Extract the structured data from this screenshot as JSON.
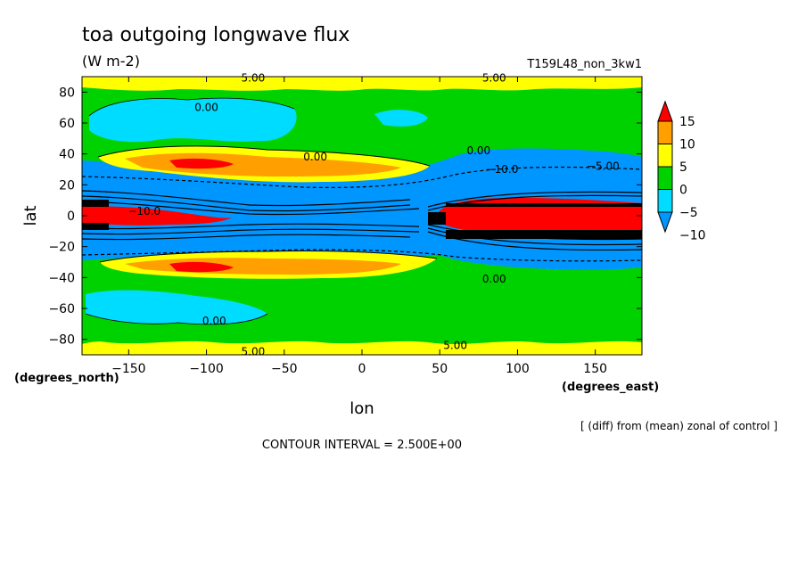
{
  "chart_data": {
    "type": "heatmap",
    "title": "toa outgoing longwave flux",
    "units": "(W m-2)",
    "run_label": "T159L48_non_3kw1",
    "xlabel": "lon",
    "ylabel": "lat",
    "xunits": "(degrees_east)",
    "yunits": "(degrees_north)",
    "xlim": [
      -180,
      180
    ],
    "ylim": [
      -90,
      90
    ],
    "xticks": [
      {
        "value": -150,
        "label": "−150"
      },
      {
        "value": -100,
        "label": "−100"
      },
      {
        "value": -50,
        "label": "−50"
      },
      {
        "value": 0,
        "label": "0"
      },
      {
        "value": 50,
        "label": "50"
      },
      {
        "value": 100,
        "label": "100"
      },
      {
        "value": 150,
        "label": "150"
      }
    ],
    "yticks": [
      {
        "value": 80,
        "label": "80"
      },
      {
        "value": 60,
        "label": "60"
      },
      {
        "value": 40,
        "label": "40"
      },
      {
        "value": 20,
        "label": "20"
      },
      {
        "value": 0,
        "label": "0"
      },
      {
        "value": -20,
        "label": "−20"
      },
      {
        "value": -40,
        "label": "−40"
      },
      {
        "value": -60,
        "label": "−60"
      },
      {
        "value": -80,
        "label": "−80"
      }
    ],
    "colorbar": {
      "levels": [
        -10,
        -5,
        0,
        5,
        10,
        15
      ],
      "labels": [
        "−10",
        "−5",
        "0",
        "5",
        "10",
        "15"
      ],
      "colors": [
        "#0096ff",
        "#00dcff",
        "#00d200",
        "#ffff00",
        "#ffa000",
        "#ff0000"
      ]
    },
    "contour_labels": [
      {
        "text": "5.00",
        "lon": -70,
        "lat": 89
      },
      {
        "text": "5.00",
        "lon": 85,
        "lat": 89
      },
      {
        "text": "0.00",
        "lon": -100,
        "lat": 70
      },
      {
        "text": "0.00",
        "lon": -30,
        "lat": 38
      },
      {
        "text": "0.00",
        "lon": 75,
        "lat": 42
      },
      {
        "text": "−10.0",
        "lon": 90,
        "lat": 30
      },
      {
        "text": "−5.00",
        "lon": 155,
        "lat": 32
      },
      {
        "text": "−10.0",
        "lon": -140,
        "lat": 3
      },
      {
        "text": "0.00",
        "lon": 85,
        "lat": -41
      },
      {
        "text": "0.00",
        "lon": -95,
        "lat": -68
      },
      {
        "text": "5.00",
        "lon": -70,
        "lat": -88
      },
      {
        "text": "5.00",
        "lon": 60,
        "lat": -84
      }
    ],
    "fields": [
      {
        "description": "equatorial positive anomaly band",
        "value_range": [
          10,
          20
        ]
      },
      {
        "description": "subtropical positive bands near 30N and 30S",
        "value_range": [
          5,
          15
        ]
      },
      {
        "description": "tropical negative bands near 15N and 15S",
        "value_range": [
          -20,
          -5
        ]
      },
      {
        "description": "mid-latitude negative patches near 60N and 60S",
        "value_range": [
          -5,
          0
        ]
      },
      {
        "description": "polar positive caps",
        "value_range": [
          5,
          10
        ]
      }
    ]
  },
  "footer": {
    "note": "[ (diff) from (mean) zonal of control ]",
    "contour_interval": "CONTOUR INTERVAL = 2.500E+00"
  },
  "colors": {
    "blue": "#0096ff",
    "cyan": "#00dcff",
    "green": "#00d200",
    "yellow": "#ffff00",
    "orange": "#ffa000",
    "red": "#ff0000",
    "black": "#000000"
  }
}
